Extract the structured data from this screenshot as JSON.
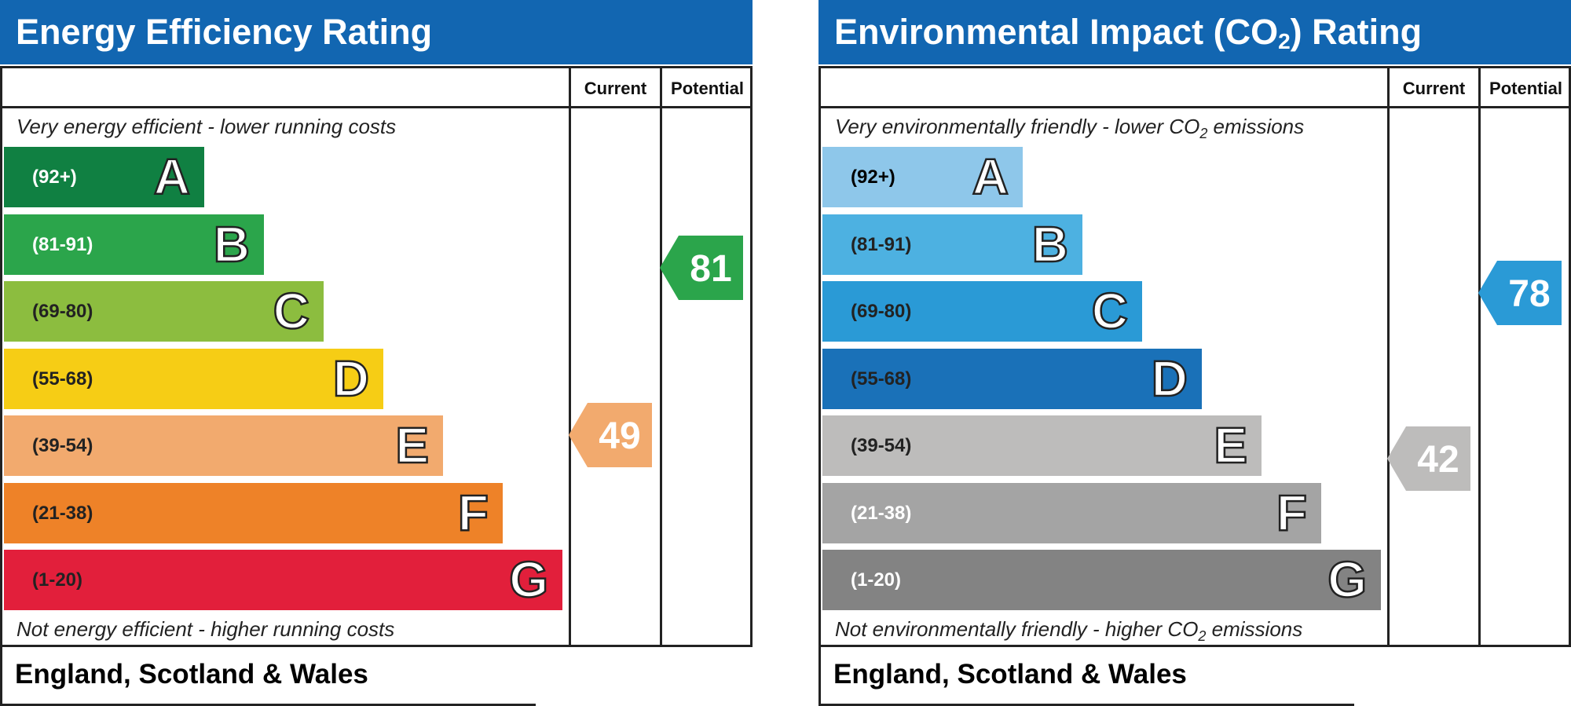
{
  "chart_data": [
    {
      "type": "bar",
      "title": "Energy Efficiency Rating",
      "column_headers": [
        "Current",
        "Potential"
      ],
      "top_note": "Very energy efficient - lower running costs",
      "bottom_note": "Not energy efficient - higher running costs",
      "footer": "England, Scotland & Wales",
      "bands": [
        {
          "range": "(92+)",
          "letter": "A",
          "min": 92,
          "max": 100,
          "color": "#108042",
          "text_color": "#ffffff"
        },
        {
          "range": "(81-91)",
          "letter": "B",
          "min": 81,
          "max": 91,
          "color": "#2ba54b",
          "text_color": "#ffffff"
        },
        {
          "range": "(69-80)",
          "letter": "C",
          "min": 69,
          "max": 80,
          "color": "#8cbd3f",
          "text_color": "#222222"
        },
        {
          "range": "(55-68)",
          "letter": "D",
          "min": 55,
          "max": 68,
          "color": "#f6cd15",
          "text_color": "#222222"
        },
        {
          "range": "(39-54)",
          "letter": "E",
          "min": 39,
          "max": 54,
          "color": "#f2aa6e",
          "text_color": "#222222"
        },
        {
          "range": "(21-38)",
          "letter": "F",
          "min": 21,
          "max": 38,
          "color": "#ee8228",
          "text_color": "#222222"
        },
        {
          "range": "(1-20)",
          "letter": "G",
          "min": 1,
          "max": 20,
          "color": "#e21f3b",
          "text_color": "#222222"
        }
      ],
      "current": {
        "value": 49,
        "label": "49",
        "color": "#f2aa6e"
      },
      "potential": {
        "value": 81,
        "label": "81",
        "color": "#2ba54b"
      }
    },
    {
      "type": "bar",
      "title": "Environmental Impact (CO",
      "title_sub": "2",
      "title_end": ") Rating",
      "column_headers": [
        "Current",
        "Potential"
      ],
      "top_note": "Very environmentally friendly - lower CO",
      "top_note_sub": "2",
      "top_note_end": " emissions",
      "bottom_note": "Not environmentally friendly - higher CO",
      "bottom_note_sub": "2",
      "bottom_note_end": " emissions",
      "footer": "England, Scotland & Wales",
      "bands": [
        {
          "range": "(92+)",
          "letter": "A",
          "min": 92,
          "max": 100,
          "color": "#8ec7ea",
          "text_color": "#000000"
        },
        {
          "range": "(81-91)",
          "letter": "B",
          "min": 81,
          "max": 91,
          "color": "#4db1e1",
          "text_color": "#222222"
        },
        {
          "range": "(69-80)",
          "letter": "C",
          "min": 69,
          "max": 80,
          "color": "#2a9ad6",
          "text_color": "#222222"
        },
        {
          "range": "(55-68)",
          "letter": "D",
          "min": 55,
          "max": 68,
          "color": "#1a71b8",
          "text_color": "#222222"
        },
        {
          "range": "(39-54)",
          "letter": "E",
          "min": 39,
          "max": 54,
          "color": "#bdbcbb",
          "text_color": "#222222"
        },
        {
          "range": "(21-38)",
          "letter": "F",
          "min": 21,
          "max": 38,
          "color": "#a4a4a4",
          "text_color": "#ffffff"
        },
        {
          "range": "(1-20)",
          "letter": "G",
          "min": 1,
          "max": 20,
          "color": "#838383",
          "text_color": "#ffffff"
        }
      ],
      "current": {
        "value": 42,
        "label": "42",
        "color": "#bdbcbb"
      },
      "potential": {
        "value": 78,
        "label": "78",
        "color": "#2a9ad6"
      }
    }
  ]
}
